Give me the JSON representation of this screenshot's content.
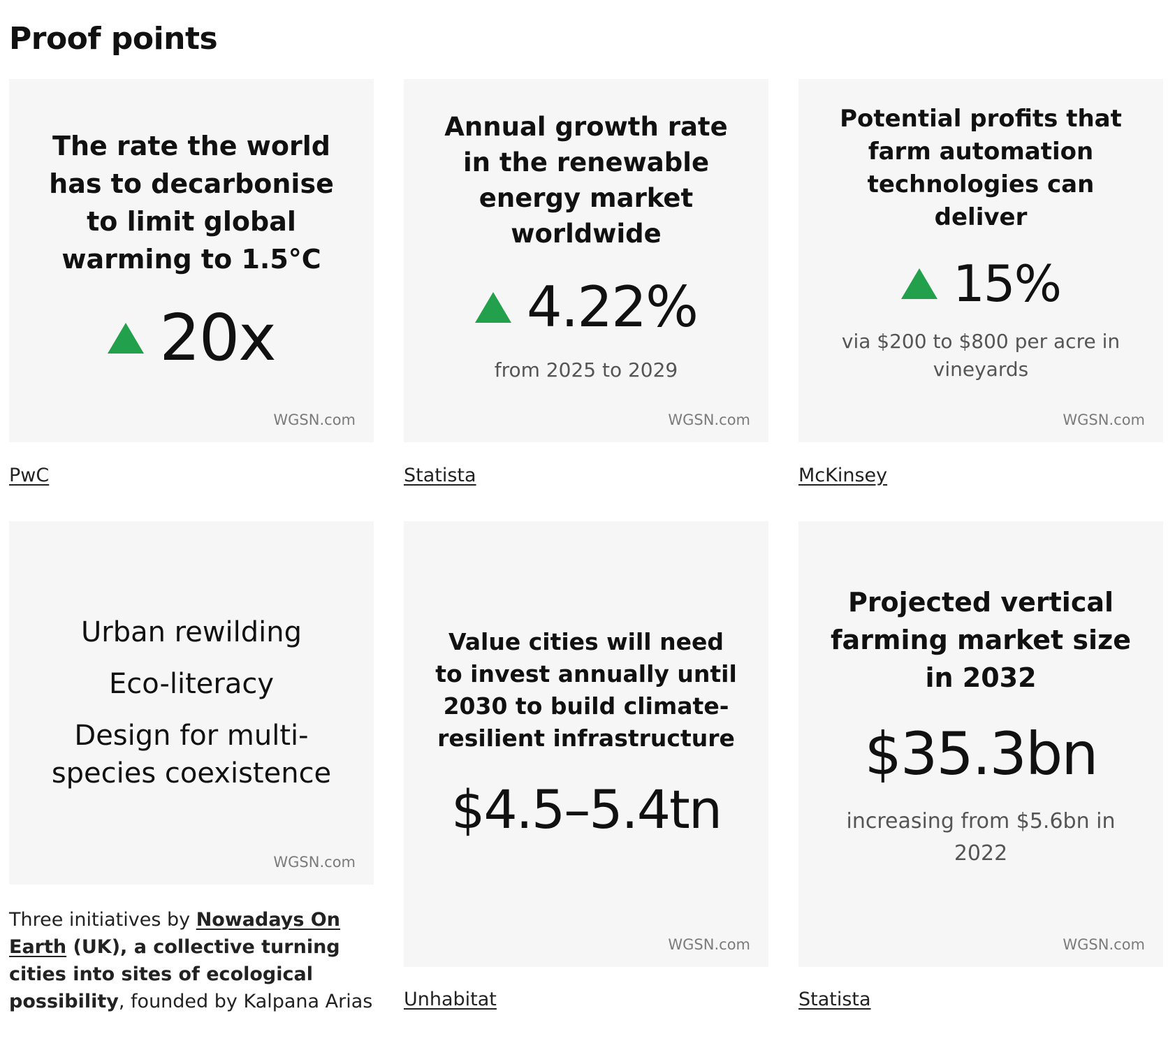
{
  "page": {
    "title": "Proof points"
  },
  "watermark": "WGSN.com",
  "cards": [
    {
      "title": "The rate the world has to decarbonise to limit global warming to 1.5°C",
      "value": "20x",
      "trend": "up",
      "source": "PwC"
    },
    {
      "title": "Annual growth rate in the renewable energy market worldwide",
      "value": "4.22%",
      "trend": "up",
      "subtitle": "from 2025 to 2029",
      "source": "Statista"
    },
    {
      "title": "Potential profits that farm automation technologies can deliver",
      "value": "15%",
      "trend": "up",
      "subtitle": "via $200 to $800 per acre in vineyards",
      "source": "McKinsey"
    },
    {
      "items": [
        "Urban rewilding",
        "Eco-literacy",
        "Design for multi-species coexistence"
      ],
      "caption": {
        "prefix": "Three initiatives by ",
        "link": "Nowadays On Earth",
        "bold": " (UK), a collective turning cities into sites of ecological possibility",
        "suffix": ", founded by Kalpana Arias"
      }
    },
    {
      "title": "Value cities will need to invest annually until 2030 to build climate-resilient infrastructure",
      "value": "$4.5–5.4tn",
      "source": "Unhabitat"
    },
    {
      "title": "Projected vertical farming market size in 2032",
      "value": "$35.3bn",
      "subtitle": "increasing from $5.6bn in 2022",
      "source": "Statista"
    }
  ],
  "colors": {
    "card_bg": "#f6f6f6",
    "trend_up": "#22a04b",
    "muted": "#7b7b7b"
  }
}
